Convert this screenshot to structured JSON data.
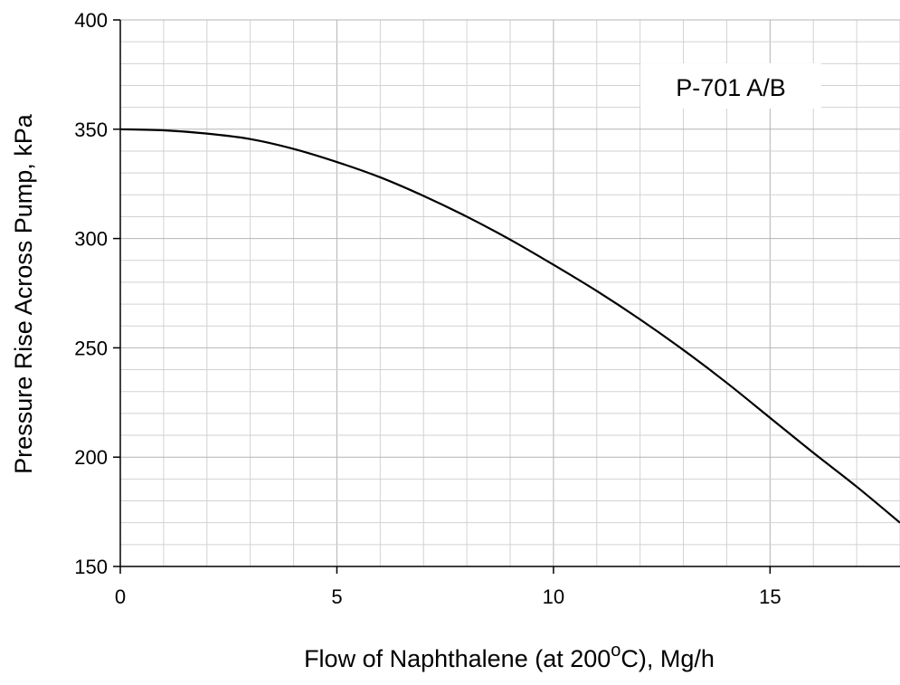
{
  "chart_data": {
    "type": "line",
    "xlabel": "Flow of Naphthalene (at 200",
    "xlabel_superscript": "o",
    "xlabel_suffix": "C), Mg/h",
    "ylabel": "Pressure Rise Across Pump, kPa",
    "annotation": "P-701 A/B",
    "xlim": [
      0,
      18
    ],
    "ylim": [
      150,
      400
    ],
    "x_ticks": [
      0,
      5,
      10,
      15
    ],
    "x_tick_labels": [
      "0",
      "5",
      "10",
      "15"
    ],
    "y_ticks": [
      150,
      200,
      250,
      300,
      350,
      400
    ],
    "y_tick_labels": [
      "150",
      "200",
      "250",
      "300",
      "350",
      "400"
    ],
    "x_minor_step": 1,
    "y_minor_step": 10,
    "grid": true,
    "series": [
      {
        "x": [
          0,
          1,
          2,
          3,
          4,
          5,
          6,
          7,
          8,
          9,
          10,
          11,
          12,
          13,
          14,
          15,
          16,
          17,
          18
        ],
        "y": [
          350,
          349.5,
          348,
          345.5,
          341,
          335,
          328,
          319.5,
          310,
          299.5,
          288,
          276,
          263,
          249,
          234,
          218,
          202,
          186.5,
          170
        ]
      }
    ]
  }
}
